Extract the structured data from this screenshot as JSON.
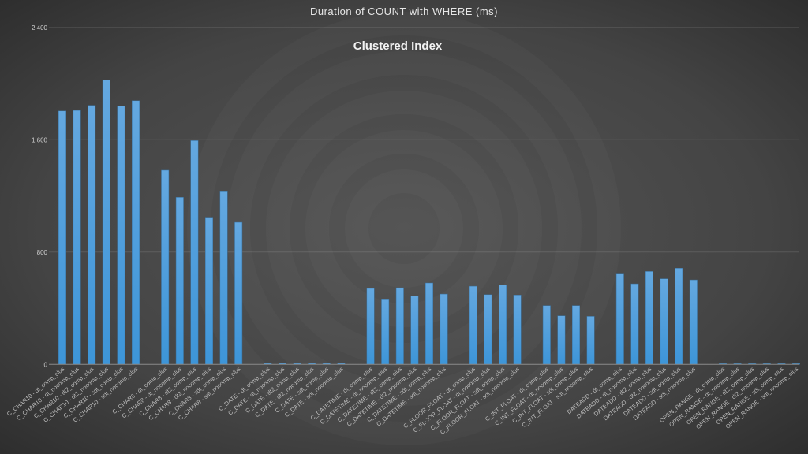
{
  "chart_data": {
    "type": "bar",
    "title": "Duration of COUNT with WHERE (ms)",
    "subtitle": "Clustered Index",
    "xlabel": "",
    "ylabel": "",
    "ylim": [
      0,
      2400
    ],
    "yticks": [
      0,
      800,
      1600,
      2400
    ],
    "ytick_labels": [
      "0",
      "800",
      "1,600",
      "2,400"
    ],
    "grid": true,
    "legend": "none",
    "bar_color": "#4a9fe0",
    "background_color": "#3a3a3a",
    "categories": [
      "C_CHAR10 - dt_comp_clus",
      "C_CHAR10 - dt_nocomp_clus",
      "C_CHAR10 - dt2_comp_clus",
      "C_CHAR10 - dt2_nocomp_clus",
      "C_CHAR10 - sdt_comp_clus",
      "C_CHAR10 - sdt_nocomp_clus",
      "C_CHAR8 - dt_comp_clus",
      "C_CHAR8 - dt_nocomp_clus",
      "C_CHAR8 - dt2_comp_clus",
      "C_CHAR8 - dt2_nocomp_clus",
      "C_CHAR8 - sdt_comp_clus",
      "C_CHAR8 - sdt_nocomp_clus",
      "C_DATE - dt_comp_clus",
      "C_DATE - dt_nocomp_clus",
      "C_DATE - dt2_comp_clus",
      "C_DATE - dt2_nocomp_clus",
      "C_DATE - sdt_comp_clus",
      "C_DATE - sdt_nocomp_clus",
      "C_DATETIME - dt_comp_clus",
      "C_DATETIME - dt_nocomp_clus",
      "C_DATETIME - dt2_comp_clus",
      "C_DATETIME - dt2_nocomp_clus",
      "C_DATETIME - sdt_comp_clus",
      "C_DATETIME - sdt_nocomp_clus",
      "C_FLOOR_FLOAT - dt_comp_clus",
      "C_FLOOR_FLOAT - dt_nocomp_clus",
      "C_FLOOR_FLOAT - sdt_comp_clus",
      "C_FLOOR_FLOAT - sdt_nocomp_clus",
      "C_INT_FLOAT - dt_comp_clus",
      "C_INT_FLOAT - dt_nocomp_clus",
      "C_INT_FLOAT - sdt_comp_clus",
      "C_INT_FLOAT - sdt_nocomp_clus",
      "DATEADD - dt_comp_clus",
      "DATEADD - dt_nocomp_clus",
      "DATEADD - dt2_comp_clus",
      "DATEADD - dt2_nocomp_clus",
      "DATEADD - sdt_comp_clus",
      "DATEADD - sdt_nocomp_clus",
      "OPEN_RANGE - dt_comp_clus",
      "OPEN_RANGE - dt_nocomp_clus",
      "OPEN_RANGE - dt2_comp_clus",
      "OPEN_RANGE - dt2_nocomp_clus",
      "OPEN_RANGE - sdt_comp_clus",
      "OPEN_RANGE - sdt_nocomp_clus"
    ],
    "values": [
      1805,
      1809,
      1845,
      2027,
      1841,
      1878,
      1383,
      1190,
      1594,
      1048,
      1235,
      1012,
      8,
      8,
      8,
      8,
      8,
      8,
      541,
      466,
      546,
      488,
      580,
      501,
      557,
      497,
      567,
      494,
      419,
      346,
      419,
      342,
      649,
      574,
      662,
      610,
      685,
      602,
      6,
      6,
      6,
      6,
      6,
      6
    ]
  }
}
